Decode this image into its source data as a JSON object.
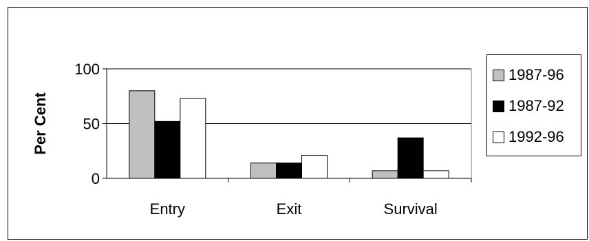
{
  "chart_data": {
    "type": "bar",
    "categories": [
      "Entry",
      "Exit",
      "Survival"
    ],
    "series": [
      {
        "name": "1987-96",
        "values": [
          80,
          14,
          7
        ],
        "color": "#c0c0c0"
      },
      {
        "name": "1987-92",
        "values": [
          52,
          14,
          37
        ],
        "color": "#000000"
      },
      {
        "name": "1992-96",
        "values": [
          73,
          21,
          7
        ],
        "color": "#ffffff"
      }
    ],
    "ylabel": "Per Cent",
    "ylim": [
      0,
      100
    ],
    "yticks": [
      0,
      50,
      100
    ],
    "grid": true,
    "legend_position": "right"
  }
}
